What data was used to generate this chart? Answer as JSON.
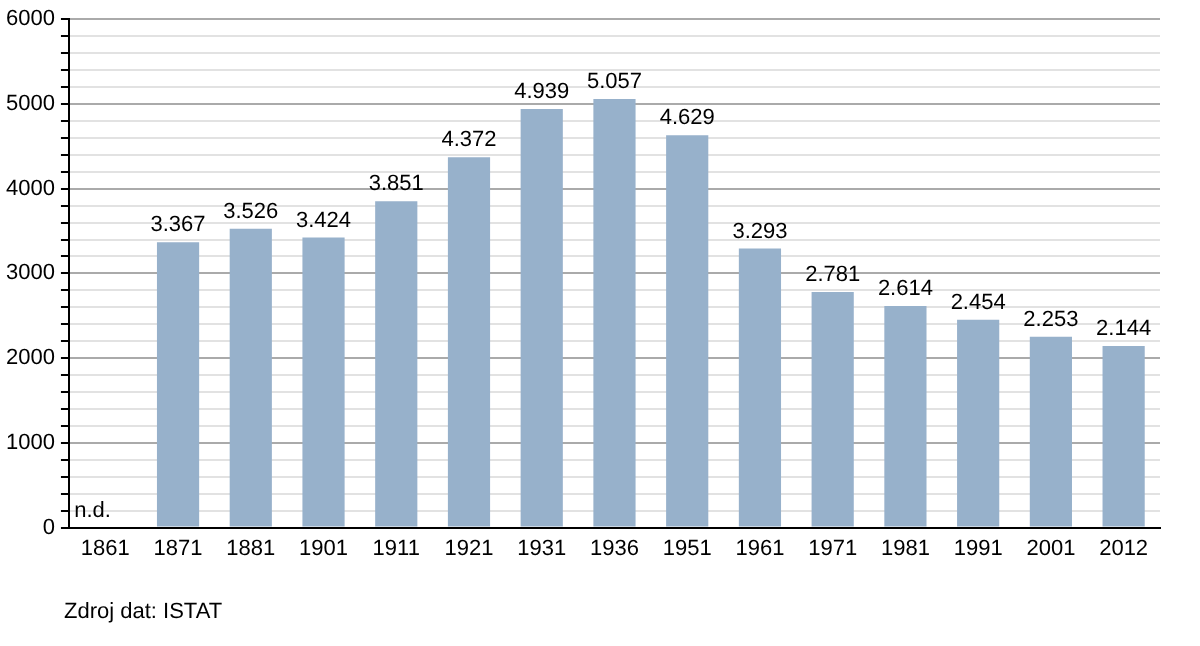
{
  "chart_data": {
    "type": "bar",
    "categories": [
      "1861",
      "1871",
      "1881",
      "1901",
      "1911",
      "1921",
      "1931",
      "1936",
      "1951",
      "1961",
      "1971",
      "1981",
      "1991",
      "2001",
      "2012"
    ],
    "values": [
      null,
      3367,
      3526,
      3424,
      3851,
      4372,
      4939,
      5057,
      4629,
      3293,
      2781,
      2614,
      2454,
      2253,
      2144
    ],
    "value_labels": [
      "n.d.",
      "3.367",
      "3.526",
      "3.424",
      "3.851",
      "4.372",
      "4.939",
      "5.057",
      "4.629",
      "3.293",
      "2.781",
      "2.614",
      "2.454",
      "2.253",
      "2.144"
    ],
    "color": "#97b1cb",
    "ylim": [
      0,
      6000
    ],
    "yticks": [
      0,
      {
        "value": 200,
        "label": null
      },
      {
        "value": 400,
        "label": null
      },
      {
        "value": 600,
        "label": null
      },
      {
        "value": 800,
        "label": null
      },
      1000,
      {
        "value": 1200,
        "label": null
      },
      {
        "value": 1400,
        "label": null
      },
      {
        "value": 1600,
        "label": null
      },
      {
        "value": 1800,
        "label": null
      },
      2000,
      {
        "value": 2200,
        "label": null
      },
      {
        "value": 2400,
        "label": null
      },
      {
        "value": 2600,
        "label": null
      },
      {
        "value": 2800,
        "label": null
      },
      3000,
      {
        "value": 3200,
        "label": null
      },
      {
        "value": 3400,
        "label": null
      },
      {
        "value": 3600,
        "label": null
      },
      {
        "value": 3800,
        "label": null
      },
      4000,
      {
        "value": 4200,
        "label": null
      },
      {
        "value": 4400,
        "label": null
      },
      {
        "value": 4600,
        "label": null
      },
      {
        "value": 4800,
        "label": null
      },
      5000,
      {
        "value": 5200,
        "label": null
      },
      {
        "value": 5400,
        "label": null
      },
      {
        "value": 5600,
        "label": null
      },
      {
        "value": 5800,
        "label": null
      },
      6000
    ],
    "grid": "y",
    "legend": false,
    "annotations": [
      "Zdroj dat: ISTAT"
    ]
  }
}
